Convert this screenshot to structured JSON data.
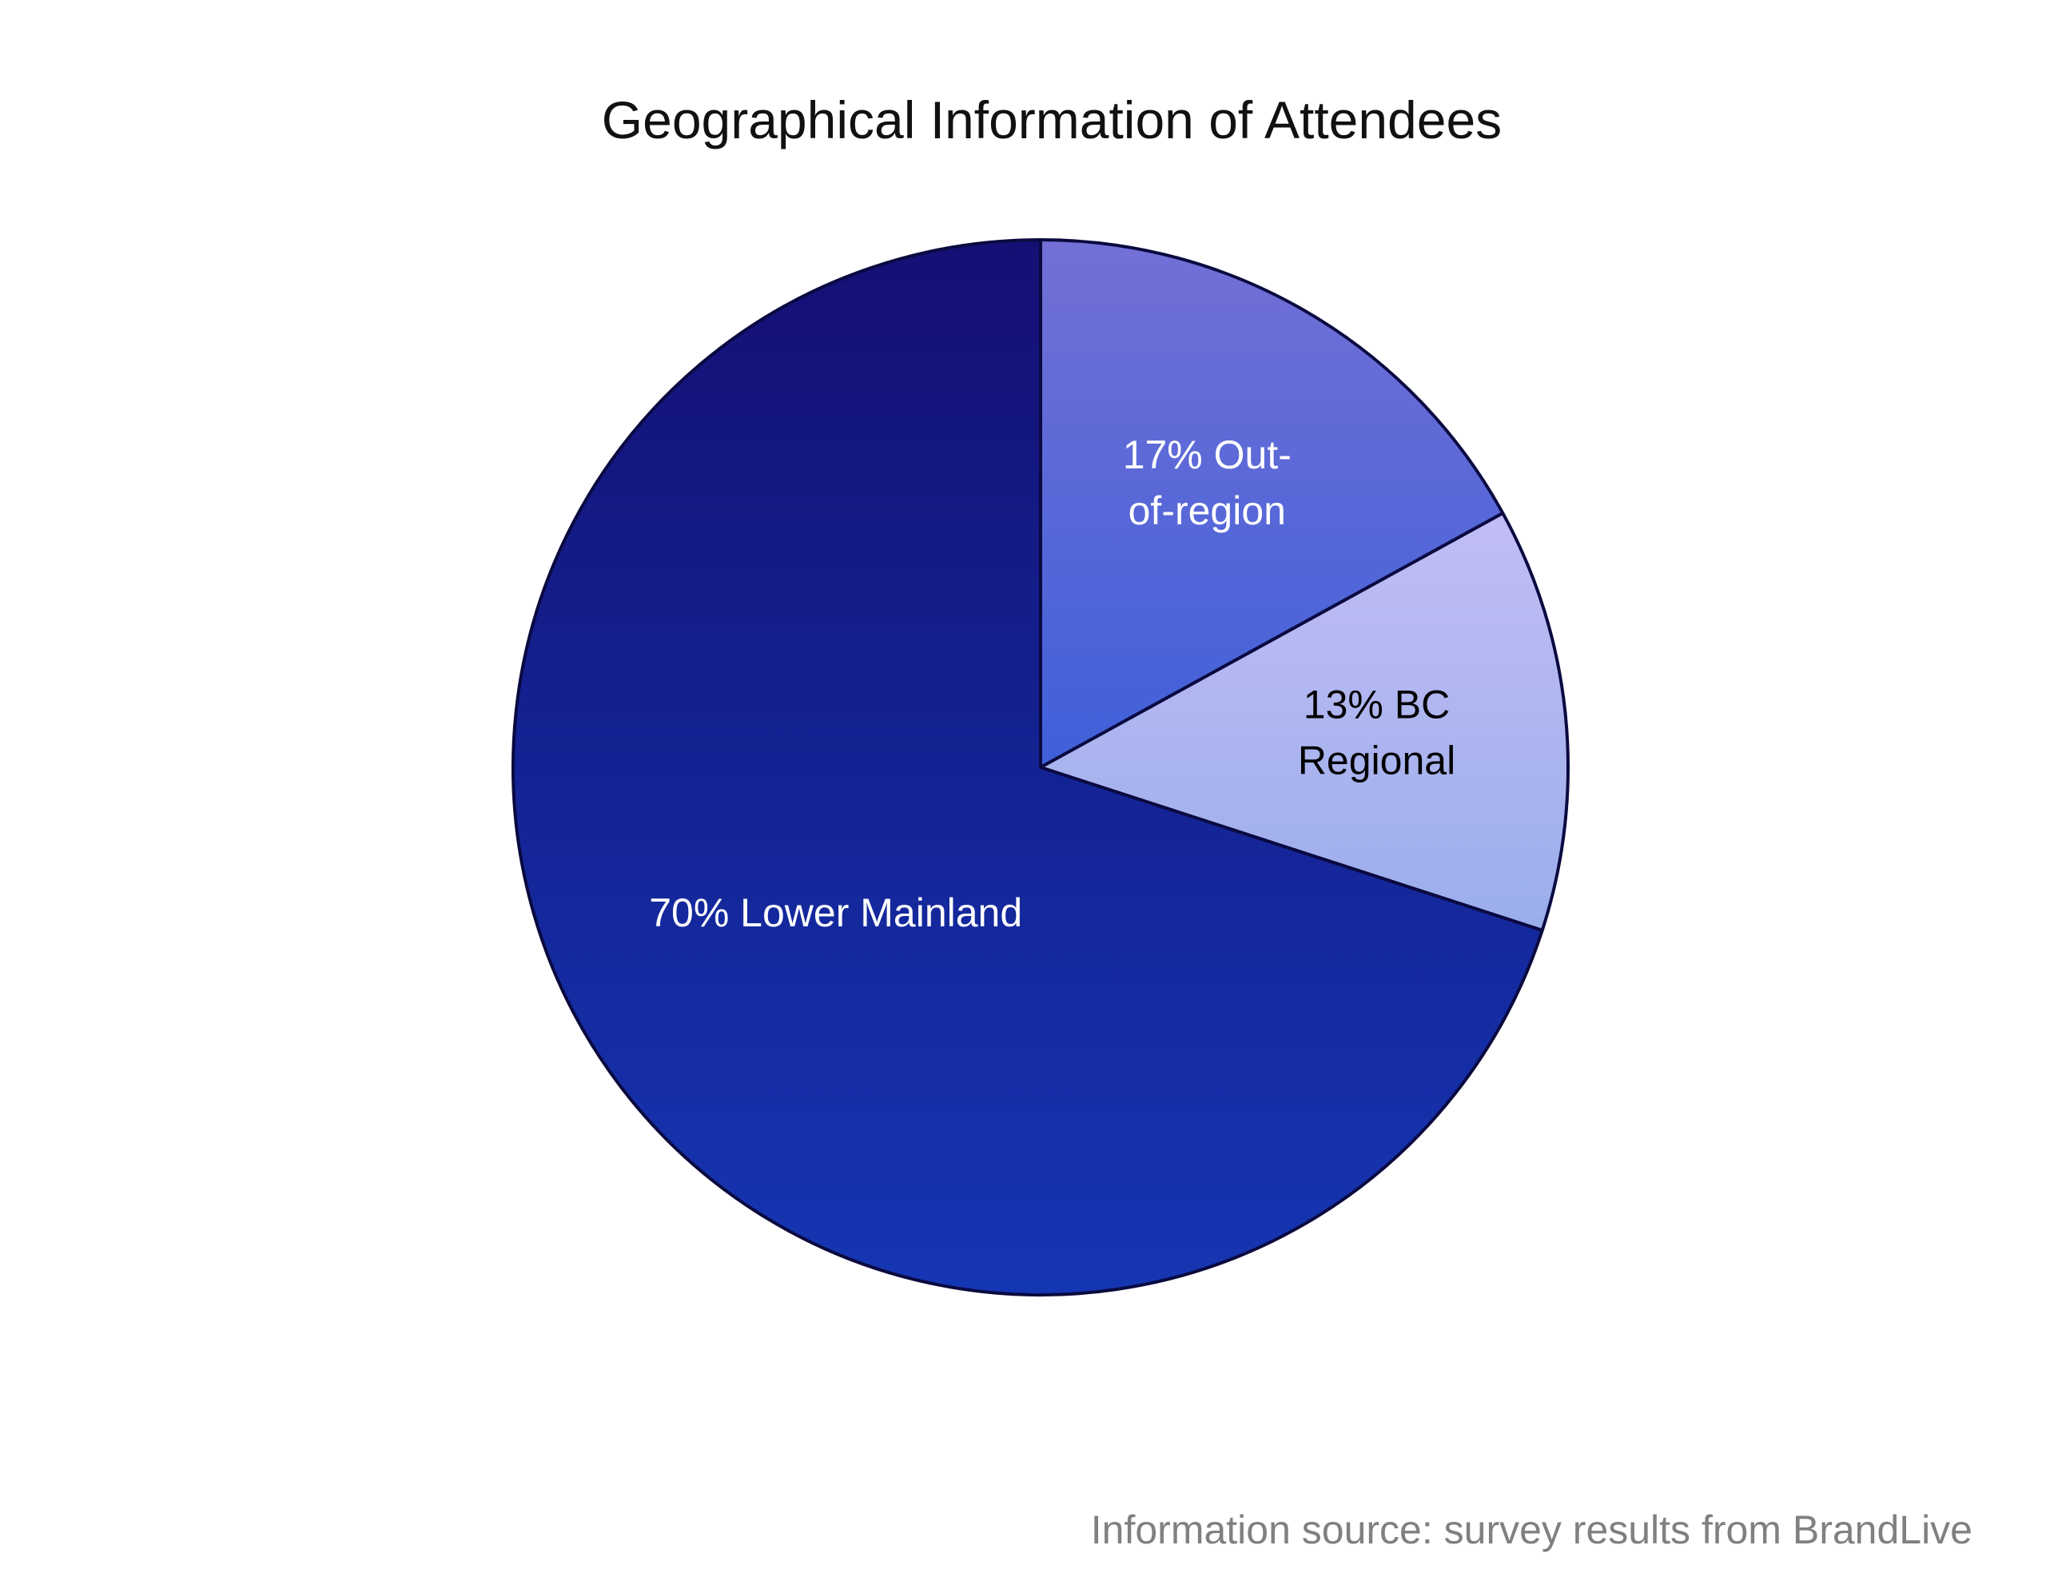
{
  "chart_data": {
    "type": "pie",
    "title": "Geographical Information of Attendees",
    "slices": [
      {
        "label": "17% Out-of-region",
        "label_lines": [
          "17% Out-",
          "of-region"
        ],
        "value": 17,
        "color": "#5e64d6",
        "text_color": "#ffffff"
      },
      {
        "label": "13% BC Regional",
        "label_lines": [
          "13% BC",
          "Regional"
        ],
        "value": 13,
        "color": "#b3b8f2",
        "text_color": "#000000"
      },
      {
        "label": "70% Lower Mainland",
        "label_lines": [
          "70% Lower Mainland"
        ],
        "value": 70,
        "color": "#15208f",
        "text_color": "#ffffff"
      }
    ],
    "legend": "none",
    "grid": false
  },
  "source_note": "Information source: survey results from BrandLive"
}
